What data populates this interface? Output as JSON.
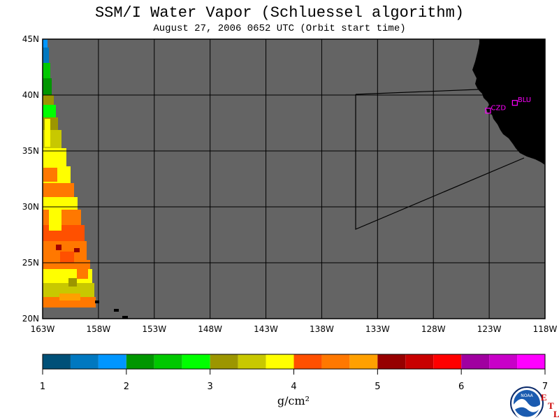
{
  "header": {
    "title": "SSM/I Water Vapor (Schluessel algorithm)",
    "subtitle": "August 27, 2006  0652 UTC  (Orbit start time)"
  },
  "map": {
    "lon_range": [
      -163,
      -118
    ],
    "lat_range": [
      20,
      45
    ],
    "lon_ticks": [
      {
        "value": -163,
        "label": "163W"
      },
      {
        "value": -158,
        "label": "158W"
      },
      {
        "value": -153,
        "label": "153W"
      },
      {
        "value": -148,
        "label": "148W"
      },
      {
        "value": -143,
        "label": "143W"
      },
      {
        "value": -138,
        "label": "138W"
      },
      {
        "value": -133,
        "label": "133W"
      },
      {
        "value": -128,
        "label": "128W"
      },
      {
        "value": -123,
        "label": "123W"
      },
      {
        "value": -118,
        "label": "118W"
      }
    ],
    "lat_ticks": [
      {
        "value": 20,
        "label": "20N"
      },
      {
        "value": 25,
        "label": "25N"
      },
      {
        "value": 30,
        "label": "30N"
      },
      {
        "value": 35,
        "label": "35N"
      },
      {
        "value": 40,
        "label": "40N"
      },
      {
        "value": 45,
        "label": "45N"
      }
    ],
    "stations": [
      {
        "label": "CZD",
        "lon": -123.1,
        "lat": 38.6
      },
      {
        "label": "BLU",
        "lon": -120.7,
        "lat": 39.3
      }
    ],
    "colors": {
      "no_data": "#646464",
      "land": "#000000",
      "station": "#ff00ff"
    }
  },
  "colorbar": {
    "min": 1,
    "max": 7,
    "labels": [
      "1",
      "2",
      "3",
      "4",
      "5",
      "6",
      "7"
    ],
    "colors": [
      "#005078",
      "#0078c0",
      "#0096ff",
      "#009600",
      "#00c800",
      "#00ff00",
      "#9c9600",
      "#c8c800",
      "#ffff00",
      "#ff5000",
      "#ff7800",
      "#ffa000",
      "#960000",
      "#c80000",
      "#ff0000",
      "#a000a0",
      "#c800c8",
      "#ff00ff"
    ],
    "units": "g/cm²"
  },
  "logo": {
    "text": "NOAA",
    "etl_letters": [
      "E",
      "T",
      "L"
    ]
  }
}
